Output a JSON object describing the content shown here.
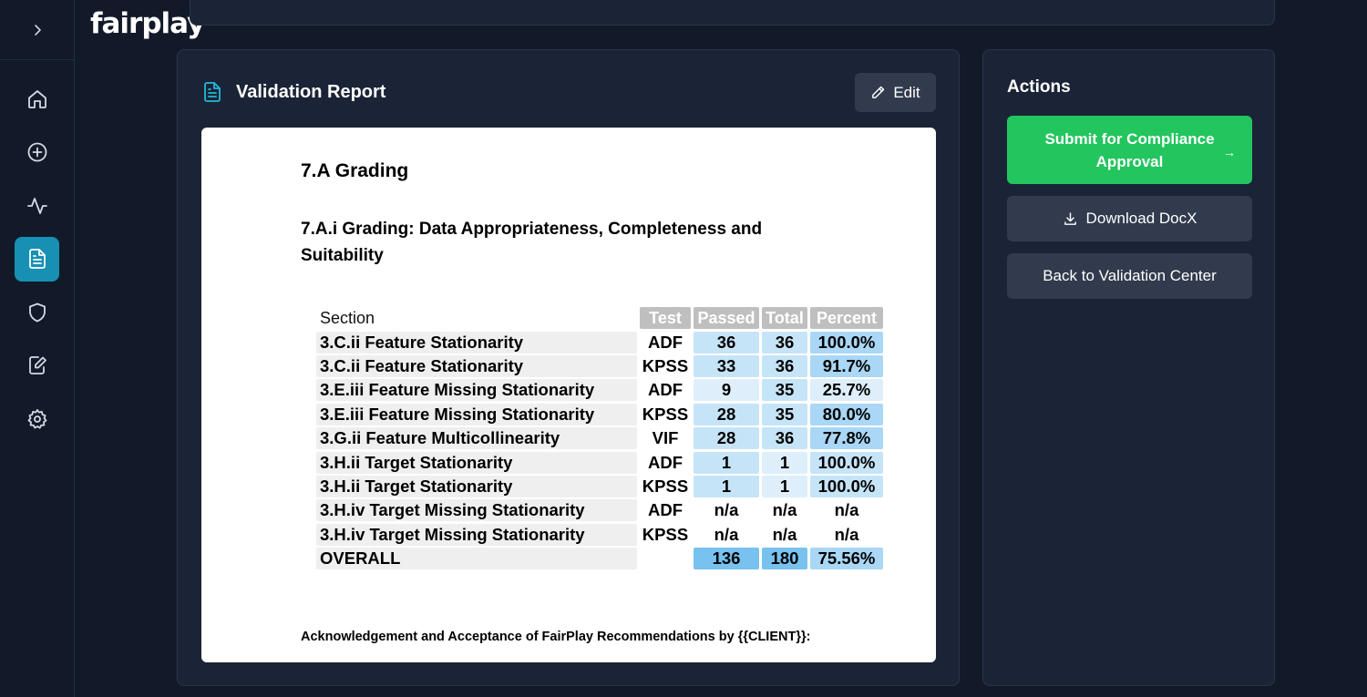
{
  "brand": {
    "logo": "fairplay"
  },
  "sidebar": {
    "items": [
      {
        "name": "home",
        "icon": "home-icon"
      },
      {
        "name": "new",
        "icon": "plus-circle-icon"
      },
      {
        "name": "activity",
        "icon": "activity-icon"
      },
      {
        "name": "reports",
        "icon": "document-icon",
        "active": true
      },
      {
        "name": "security",
        "icon": "shield-icon"
      },
      {
        "name": "edit",
        "icon": "edit-document-icon"
      },
      {
        "name": "settings",
        "icon": "gear-icon"
      }
    ]
  },
  "report": {
    "title": "Validation Report",
    "edit_label": "Edit",
    "doc": {
      "h1": "7.A Grading",
      "h2": "7.A.i Grading: Data Appropriateness, Completeness and Suitability",
      "footer": "Acknowledgement and Acceptance of FairPlay Recommendations by {{CLIENT}}:",
      "table": {
        "headers": {
          "section": "Section",
          "test": "Test",
          "passed": "Passed",
          "total": "Total",
          "percent": "Percent"
        },
        "rows": [
          {
            "section": "3.C.ii Feature Stationarity",
            "test": "ADF",
            "passed": "36",
            "total": "36",
            "percent": "100.0%"
          },
          {
            "section": "3.C.ii Feature Stationarity",
            "test": "KPSS",
            "passed": "33",
            "total": "36",
            "percent": "91.7%"
          },
          {
            "section": "3.E.iii Feature Missing Stationarity",
            "test": "ADF",
            "passed": "9",
            "total": "35",
            "percent": "25.7%"
          },
          {
            "section": "3.E.iii Feature Missing Stationarity",
            "test": "KPSS",
            "passed": "28",
            "total": "35",
            "percent": "80.0%"
          },
          {
            "section": "3.G.ii Feature Multicollinearity",
            "test": "VIF",
            "passed": "28",
            "total": "36",
            "percent": "77.8%"
          },
          {
            "section": "3.H.ii Target Stationarity",
            "test": "ADF",
            "passed": "1",
            "total": "1",
            "percent": "100.0%"
          },
          {
            "section": "3.H.ii Target Stationarity",
            "test": "KPSS",
            "passed": "1",
            "total": "1",
            "percent": "100.0%"
          },
          {
            "section": "3.H.iv Target Missing Stationarity",
            "test": "ADF",
            "passed": "n/a",
            "total": "n/a",
            "percent": "n/a"
          },
          {
            "section": "3.H.iv Target Missing Stationarity",
            "test": "KPSS",
            "passed": "n/a",
            "total": "n/a",
            "percent": "n/a"
          },
          {
            "section": "OVERALL",
            "test": "",
            "passed": "136",
            "total": "180",
            "percent": "75.56%"
          }
        ]
      }
    }
  },
  "actions": {
    "title": "Actions",
    "submit_label": "Submit for Compliance Approval",
    "submit_arrow": "→",
    "download_label": "Download DocX",
    "back_label": "Back to Validation Center"
  }
}
